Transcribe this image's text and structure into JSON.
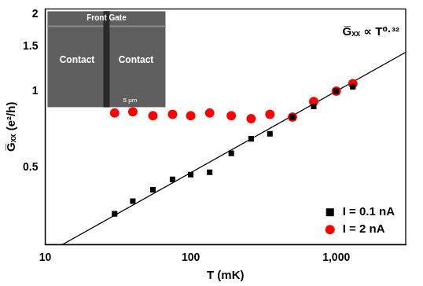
{
  "chart_data": {
    "type": "scatter",
    "log": true,
    "grid": false,
    "legend": "lower right",
    "x_label": "T (mK)",
    "y_label": "G̅ₓₓ (e²/h)",
    "annotation": "G̅ₓₓ ∝ T⁰·³²",
    "inset": {
      "labels": [
        "Front Gate",
        "Contact",
        "Contact",
        "5 μm"
      ]
    },
    "xlim": [
      10,
      3000
    ],
    "ylim": [
      0.25,
      2.1
    ],
    "xticks": [
      10,
      100,
      {
        "value": 1000,
        "label": "1,000"
      }
    ],
    "yticks": [
      0.5,
      1,
      1.5,
      2
    ],
    "series": [
      {
        "name": "I = 0.1 nA",
        "color": "#000000",
        "marker": "square",
        "x": [
          30,
          40,
          55,
          75,
          100,
          135,
          190,
          260,
          350,
          500,
          700,
          1000,
          1300
        ],
        "values": [
          0.33,
          0.37,
          0.41,
          0.45,
          0.47,
          0.48,
          0.57,
          0.65,
          0.68,
          0.79,
          0.87,
          1.0,
          1.04
        ]
      },
      {
        "name": "I = 2 nA",
        "color": "#ff0000",
        "marker": "circle",
        "x": [
          30,
          40,
          55,
          75,
          100,
          135,
          190,
          260,
          350,
          500,
          700,
          1000,
          1300
        ],
        "values": [
          0.82,
          0.83,
          0.8,
          0.81,
          0.8,
          0.82,
          0.8,
          0.78,
          0.81,
          0.79,
          0.91,
          1.0,
          1.07
        ]
      }
    ],
    "fit": {
      "type": "line",
      "color": "#000000",
      "line_style": "solid",
      "x": [
        10,
        3000
      ],
      "values": [
        0.229,
        1.42
      ]
    }
  }
}
